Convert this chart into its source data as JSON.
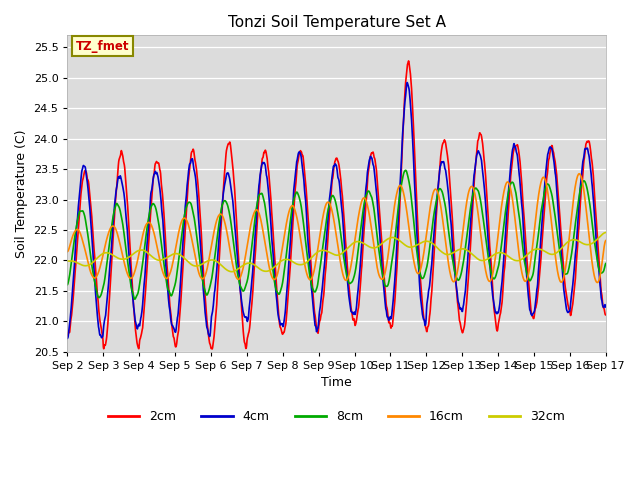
{
  "title": "Tonzi Soil Temperature Set A",
  "xlabel": "Time",
  "ylabel": "Soil Temperature (C)",
  "ylim": [
    20.5,
    25.7
  ],
  "annotation": "TZ_fmet",
  "bg_color": "#dcdcdc",
  "fig_color": "#ffffff",
  "legend_labels": [
    "2cm",
    "4cm",
    "8cm",
    "16cm",
    "32cm"
  ],
  "legend_colors": [
    "#ff0000",
    "#0000cc",
    "#00aa00",
    "#ff8800",
    "#cccc00"
  ],
  "xtick_labels": [
    "Sep 2",
    "Sep 3",
    "Sep 4",
    "Sep 5",
    "Sep 6",
    "Sep 7",
    "Sep 8",
    "Sep 9",
    "Sep 10",
    "Sep 11",
    "Sep 12",
    "Sep 13",
    "Sep 14",
    "Sep 15",
    "Sep 16",
    "Sep 17"
  ],
  "n_days": 15,
  "samples_per_day": 96,
  "line_width": 1.2
}
